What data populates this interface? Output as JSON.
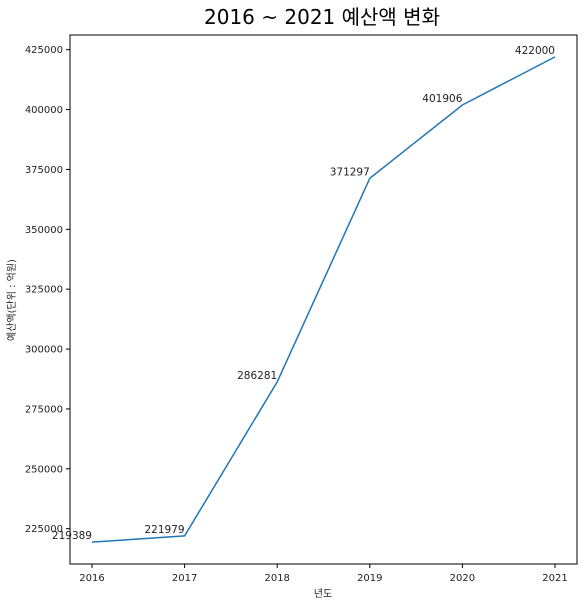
{
  "chart_data": {
    "type": "line",
    "title": "2016 ~ 2021 예산액 변화",
    "xlabel": "년도",
    "ylabel": "예산액(단위 : 억원)",
    "x": [
      "2016",
      "2017",
      "2018",
      "2019",
      "2020",
      "2021"
    ],
    "series": [
      {
        "values": [
          219389,
          221979,
          286281,
          371297,
          401906,
          422000
        ],
        "color": "#1f77b4"
      }
    ],
    "data_labels": [
      "219389",
      "221979",
      "286281",
      "371297",
      "401906",
      "422000"
    ],
    "y_ticks": [
      225000,
      250000,
      275000,
      300000,
      325000,
      350000,
      375000,
      400000,
      425000
    ],
    "ylim": [
      210258,
      431131
    ],
    "grid": false,
    "legend": "none"
  }
}
